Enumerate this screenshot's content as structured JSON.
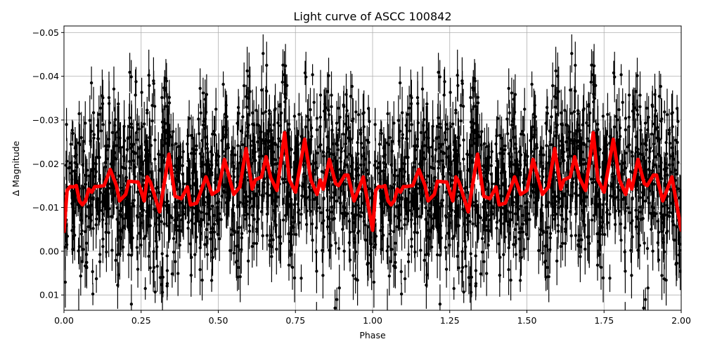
{
  "chart_data": {
    "type": "scatter",
    "title": "Light curve of ASCC 100842",
    "xlabel": "Phase",
    "ylabel": "Δ Magnitude",
    "xlim": [
      0.0,
      2.0
    ],
    "ylim": [
      0.0135,
      -0.0515
    ],
    "y_inverted": true,
    "grid": true,
    "legend": null,
    "x_ticks": [
      "0.00",
      "0.25",
      "0.50",
      "0.75",
      "1.00",
      "1.25",
      "1.50",
      "1.75",
      "2.00"
    ],
    "x_tick_values": [
      0.0,
      0.25,
      0.5,
      0.75,
      1.0,
      1.25,
      1.5,
      1.75,
      2.0
    ],
    "y_ticks": [
      "−0.05",
      "−0.04",
      "−0.03",
      "−0.02",
      "−0.01",
      "0.00",
      "0.01"
    ],
    "y_tick_values": [
      -0.05,
      -0.04,
      -0.03,
      -0.02,
      -0.01,
      0.0,
      0.01
    ],
    "series": [
      {
        "name": "observations",
        "kind": "errorbar-scatter",
        "color": "#000000",
        "marker": "circle",
        "description": "Dense phase-folded photometry with vertical error bars, repeated over two cycles; bulk spans roughly −0.03 to 0.005 with outliers to the axis limits",
        "approx_center": -0.014,
        "approx_spread": 0.009,
        "approx_errorbar": 0.004,
        "approx_points_per_cycle": 1400
      },
      {
        "name": "model",
        "kind": "line",
        "color": "#ff0000",
        "linewidth": 5,
        "periodic": true,
        "x": [
          0.0,
          0.01,
          0.02,
          0.03,
          0.04,
          0.05,
          0.06,
          0.07,
          0.08,
          0.09,
          0.1,
          0.11,
          0.13,
          0.15,
          0.17,
          0.18,
          0.2,
          0.21,
          0.24,
          0.26,
          0.27,
          0.28,
          0.31,
          0.34,
          0.36,
          0.38,
          0.4,
          0.41,
          0.43,
          0.46,
          0.48,
          0.5,
          0.52,
          0.55,
          0.57,
          0.59,
          0.61,
          0.62,
          0.64,
          0.655,
          0.67,
          0.69,
          0.715,
          0.73,
          0.75,
          0.78,
          0.8,
          0.82,
          0.83,
          0.84,
          0.86,
          0.88,
          0.89,
          0.91,
          0.92,
          0.94,
          0.97,
          1.0
        ],
        "y": [
          -0.0045,
          -0.0139,
          -0.0148,
          -0.0147,
          -0.015,
          -0.0115,
          -0.0106,
          -0.0115,
          -0.0142,
          -0.0135,
          -0.0148,
          -0.0148,
          -0.015,
          -0.0187,
          -0.015,
          -0.0115,
          -0.013,
          -0.016,
          -0.0158,
          -0.0115,
          -0.017,
          -0.0158,
          -0.009,
          -0.0222,
          -0.0126,
          -0.012,
          -0.0147,
          -0.0106,
          -0.011,
          -0.017,
          -0.013,
          -0.0139,
          -0.021,
          -0.013,
          -0.0147,
          -0.0235,
          -0.0142,
          -0.0163,
          -0.017,
          -0.0216,
          -0.0168,
          -0.0139,
          -0.0271,
          -0.0163,
          -0.0135,
          -0.0256,
          -0.0163,
          -0.013,
          -0.0163,
          -0.0142,
          -0.021,
          -0.0155,
          -0.015,
          -0.0174,
          -0.0174,
          -0.0115,
          -0.017,
          -0.0048
        ]
      }
    ]
  },
  "colors": {
    "background": "#ffffff",
    "grid": "#b0b0b0",
    "axes": "#000000",
    "data": "#000000",
    "model": "#ff0000"
  }
}
